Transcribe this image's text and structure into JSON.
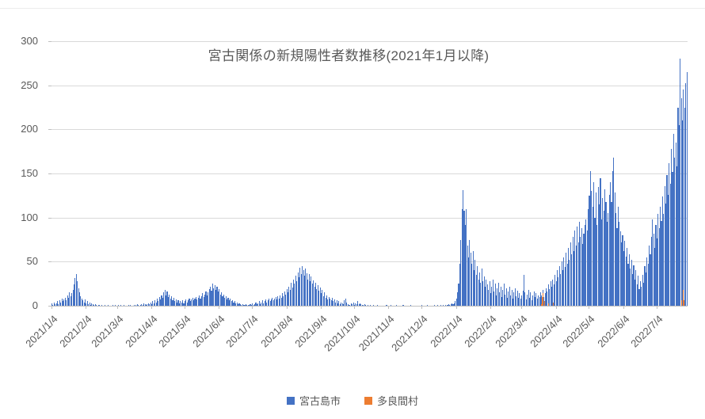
{
  "title": "宮古関係の新規陽性者数推移(2021年1月以降)",
  "colors": {
    "miyakojima_blue": "#4472C4",
    "tarama_orange": "#ED7D31",
    "gridline": "#D9D9D9",
    "axis_text": "#595959"
  },
  "legend": [
    {
      "label": "宮古島市",
      "color": "#4472C4"
    },
    {
      "label": "多良間村",
      "color": "#ED7D31"
    }
  ],
  "y_axis": {
    "min": 0,
    "max": 300,
    "step": 50,
    "ticks": [
      "0",
      "50",
      "100",
      "150",
      "200",
      "250",
      "300"
    ]
  },
  "x_axis": {
    "tick_labels": [
      "2021/1/4",
      "2021/2/4",
      "2021/3/4",
      "2021/4/4",
      "2021/5/4",
      "2021/6/4",
      "2021/7/4",
      "2021/8/4",
      "2021/9/4",
      "2021/10/4",
      "2021/11/4",
      "2021/12/4",
      "2022/1/4",
      "2022/2/4",
      "2022/3/4",
      "2022/4/4",
      "2022/5/4",
      "2022/6/4",
      "2022/7/4"
    ],
    "tick_day_indices": [
      0,
      31,
      59,
      90,
      120,
      151,
      181,
      212,
      243,
      273,
      304,
      334,
      365,
      396,
      424,
      455,
      485,
      516,
      546
    ]
  },
  "chart_data": {
    "type": "bar",
    "title": "宮古関係の新規陽性者数推移(2021年1月以降)",
    "xlabel": "",
    "ylabel": "",
    "ylim": [
      0,
      300
    ],
    "grid": true,
    "legend_position": "bottom",
    "start_date": "2021/1/4",
    "end_date": "2022/7/31",
    "days": 574,
    "x_tick_labels": [
      "2021/1/4",
      "2021/2/4",
      "2021/3/4",
      "2021/4/4",
      "2021/5/4",
      "2021/6/4",
      "2021/7/4",
      "2021/8/4",
      "2021/9/4",
      "2021/10/4",
      "2021/11/4",
      "2021/12/4",
      "2022/1/4",
      "2022/2/4",
      "2022/3/4",
      "2022/4/4",
      "2022/5/4",
      "2022/6/4",
      "2022/7/4"
    ],
    "series": [
      {
        "name": "宮古島市",
        "color": "#4472C4",
        "values": [
          3,
          1,
          4,
          2,
          3,
          5,
          2,
          6,
          4,
          8,
          5,
          7,
          9,
          6,
          12,
          9,
          15,
          11,
          14,
          18,
          24,
          31,
          36,
          28,
          20,
          15,
          11,
          8,
          6,
          4,
          7,
          3,
          5,
          2,
          4,
          1,
          3,
          2,
          1,
          2,
          1,
          0,
          1,
          1,
          0,
          1,
          0,
          0,
          1,
          0,
          0,
          1,
          0,
          0,
          0,
          1,
          0,
          1,
          0,
          0,
          1,
          0,
          1,
          0,
          0,
          1,
          0,
          0,
          0,
          1,
          0,
          1,
          0,
          0,
          1,
          0,
          1,
          2,
          1,
          0,
          1,
          2,
          1,
          3,
          2,
          1,
          2,
          3,
          2,
          4,
          2,
          5,
          3,
          6,
          4,
          8,
          5,
          10,
          7,
          12,
          9,
          15,
          18,
          12,
          16,
          10,
          13,
          8,
          11,
          6,
          9,
          5,
          7,
          4,
          6,
          3,
          5,
          4,
          6,
          3,
          5,
          7,
          4,
          6,
          8,
          5,
          7,
          9,
          6,
          8,
          10,
          7,
          9,
          12,
          8,
          11,
          14,
          10,
          13,
          16,
          12,
          15,
          19,
          22,
          17,
          25,
          20,
          23,
          18,
          22,
          16,
          19,
          13,
          15,
          11,
          13,
          9,
          11,
          7,
          9,
          6,
          8,
          5,
          6,
          4,
          5,
          3,
          4,
          2,
          3,
          2,
          1,
          2,
          1,
          1,
          2,
          1,
          1,
          1,
          2,
          1,
          3,
          1,
          2,
          4,
          2,
          3,
          5,
          2,
          4,
          6,
          3,
          5,
          7,
          4,
          6,
          8,
          5,
          7,
          9,
          6,
          8,
          10,
          7,
          11,
          8,
          12,
          9,
          14,
          11,
          16,
          13,
          19,
          15,
          22,
          18,
          26,
          21,
          30,
          25,
          34,
          28,
          38,
          32,
          43,
          36,
          45,
          40,
          34,
          42,
          37,
          30,
          36,
          28,
          33,
          25,
          29,
          22,
          26,
          19,
          23,
          17,
          21,
          14,
          18,
          11,
          15,
          9,
          12,
          7,
          10,
          8,
          6,
          9,
          5,
          7,
          4,
          6,
          3,
          5,
          2,
          4,
          3,
          2,
          6,
          8,
          4,
          2,
          1,
          1,
          3,
          2,
          4,
          1,
          3,
          2,
          5,
          2,
          3,
          2,
          1,
          1,
          2,
          1,
          0,
          1,
          0,
          1,
          0,
          0,
          1,
          0,
          0,
          0,
          1,
          0,
          0,
          0,
          0,
          0,
          0,
          0,
          1,
          0,
          0,
          0,
          1,
          0,
          0,
          0,
          0,
          1,
          0,
          0,
          0,
          0,
          0,
          1,
          0,
          0,
          0,
          0,
          0,
          0,
          1,
          0,
          0,
          0,
          0,
          0,
          0,
          0,
          0,
          0,
          1,
          0,
          0,
          0,
          0,
          1,
          0,
          0,
          0,
          0,
          0,
          1,
          0,
          0,
          1,
          0,
          0,
          1,
          0,
          1,
          0,
          1,
          0,
          1,
          2,
          1,
          2,
          3,
          2,
          3,
          5,
          8,
          15,
          25,
          48,
          75,
          110,
          131,
          108,
          92,
          110,
          68,
          55,
          75,
          60,
          48,
          62,
          40,
          52,
          35,
          45,
          30,
          38,
          26,
          42,
          28,
          33,
          22,
          30,
          24,
          18,
          28,
          14,
          22,
          30,
          16,
          25,
          12,
          20,
          26,
          15,
          22,
          10,
          18,
          25,
          13,
          20,
          9,
          16,
          22,
          12,
          18,
          8,
          15,
          20,
          11,
          17,
          9,
          14,
          8,
          12,
          17,
          35,
          15,
          7,
          13,
          18,
          9,
          15,
          6,
          12,
          16,
          10,
          14,
          8,
          12,
          10,
          15,
          12,
          18,
          10,
          14,
          20,
          16,
          24,
          19,
          28,
          22,
          30,
          24,
          35,
          28,
          40,
          32,
          45,
          36,
          50,
          40,
          55,
          44,
          60,
          48,
          66,
          52,
          72,
          58,
          78,
          62,
          85,
          68,
          90,
          72,
          95,
          78,
          88,
          70,
          82,
          92,
          98,
          85,
          110,
          125,
          153,
          130,
          112,
          140,
          100,
          128,
          92,
          135,
          115,
          145,
          98,
          122,
          108,
          132,
          118,
          95,
          105,
          126,
          140,
          118,
          153,
          168,
          128,
          105,
          88,
          112,
          95,
          84,
          72,
          80,
          62,
          74,
          56,
          66,
          48,
          58,
          42,
          52,
          36,
          46,
          30,
          40,
          24,
          34,
          19,
          28,
          22,
          35,
          26,
          45,
          38,
          55,
          48,
          68,
          58,
          78,
          98,
          82,
          66,
          92,
          76,
          104,
          88,
          112,
          96,
          124,
          104,
          136,
          116,
          148,
          126,
          162,
          138,
          178,
          152,
          195,
          168,
          185,
          158,
          225,
          205,
          280,
          235,
          210,
          245,
          225,
          252,
          265
        ]
      },
      {
        "name": "多良間村",
        "color": "#ED7D31",
        "sparse_values": {
          "441": 2,
          "442": 10,
          "443": 14,
          "444": 5,
          "448": 3,
          "452": 4,
          "568": 6,
          "569": 18,
          "570": 6
        }
      }
    ]
  }
}
